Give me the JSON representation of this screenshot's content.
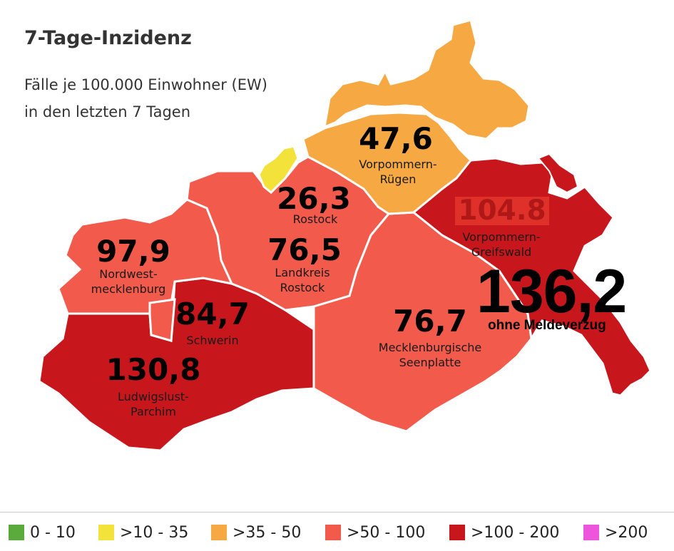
{
  "title": "7-Tage-Inzidenz",
  "subtitle_lines": [
    "Fälle je 100.000 Einwohner (EW)",
    "in den letzten 7 Tagen"
  ],
  "colors": {
    "c0_10": "#5aaa3c",
    "c10_35": "#f2e23a",
    "c35_50": "#f6a843",
    "c50_100": "#f25a4c",
    "c100_200": "#c8171c",
    "c200": "#ee55dd"
  },
  "regions": {
    "vorpommern_ruegen": {
      "value": "47,6",
      "name_lines": [
        "Vorpommern-",
        "Rügen"
      ]
    },
    "rostock": {
      "value": "26,3",
      "name_lines": [
        "Rostock"
      ]
    },
    "landkreis_rostock": {
      "value": "76,5",
      "name_lines": [
        "Landkreis",
        "Rostock"
      ]
    },
    "nordwestmecklenburg": {
      "value": "97,9",
      "name_lines": [
        "Nordwest-",
        "mecklenburg"
      ]
    },
    "schwerin": {
      "value": "84,7",
      "name_lines": [
        "Schwerin"
      ]
    },
    "ludwigslust_parchim": {
      "value": "130,8",
      "name_lines": [
        "Ludwigslust-",
        "Parchim"
      ]
    },
    "mecklenburgische_seenplatte": {
      "value": "76,7",
      "name_lines": [
        "Mecklenburgische",
        "Seenplatte"
      ]
    },
    "vorpommern_greifswald": {
      "value": "104.8",
      "name_lines": [
        "Vorpommern-",
        "Greifswald"
      ]
    }
  },
  "override": {
    "value": "136,2",
    "note": "ohne Meldeverzug"
  },
  "legend": [
    {
      "label": "0 - 10",
      "color": "#5aaa3c"
    },
    {
      "label": ">10 - 35",
      "color": "#f2e23a"
    },
    {
      "label": ">35 - 50",
      "color": "#f6a843"
    },
    {
      "label": ">50 - 100",
      "color": "#f25a4c"
    },
    {
      "label": ">100 - 200",
      "color": "#c8171c"
    },
    {
      "label": ">200",
      "color": "#ee55dd"
    }
  ]
}
